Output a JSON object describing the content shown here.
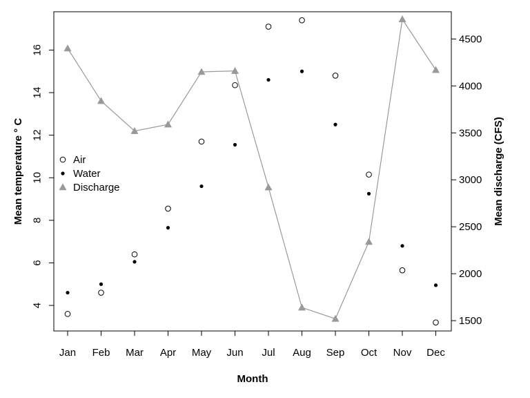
{
  "chart_data": {
    "type": "scatter",
    "xlabel": "Month",
    "ylabel_left": "Mean temperature ° C",
    "ylabel_right": "Mean discharge (CFS)",
    "categories": [
      "Jan",
      "Feb",
      "Mar",
      "Apr",
      "May",
      "Jun",
      "Jul",
      "Aug",
      "Sep",
      "Oct",
      "Nov",
      "Dec"
    ],
    "y_left_range": [
      2.8,
      17.8
    ],
    "y_left_ticks": [
      4,
      6,
      8,
      10,
      12,
      14,
      16
    ],
    "y_right_range": [
      1390,
      4790
    ],
    "y_right_ticks": [
      1500,
      2000,
      2500,
      3000,
      3500,
      4000,
      4500
    ],
    "grid": false,
    "legend_position": "left-middle",
    "series": [
      {
        "name": "Air",
        "axis": "left",
        "marker": "open-circle",
        "color": "#000000",
        "values": [
          3.6,
          4.6,
          6.4,
          8.55,
          11.7,
          14.35,
          17.1,
          17.4,
          14.8,
          10.15,
          5.65,
          3.2
        ]
      },
      {
        "name": "Water",
        "axis": "left",
        "marker": "filled-dot",
        "color": "#000000",
        "values": [
          4.6,
          5.0,
          6.05,
          7.65,
          9.6,
          11.55,
          14.6,
          15.0,
          12.5,
          9.25,
          6.8,
          4.95
        ]
      },
      {
        "name": "Discharge",
        "axis": "right",
        "marker": "triangle-line",
        "color": "#999999",
        "values": [
          4400,
          3840,
          3520,
          3590,
          4150,
          4160,
          2920,
          1640,
          1520,
          2340,
          4710,
          4170
        ]
      }
    ]
  }
}
